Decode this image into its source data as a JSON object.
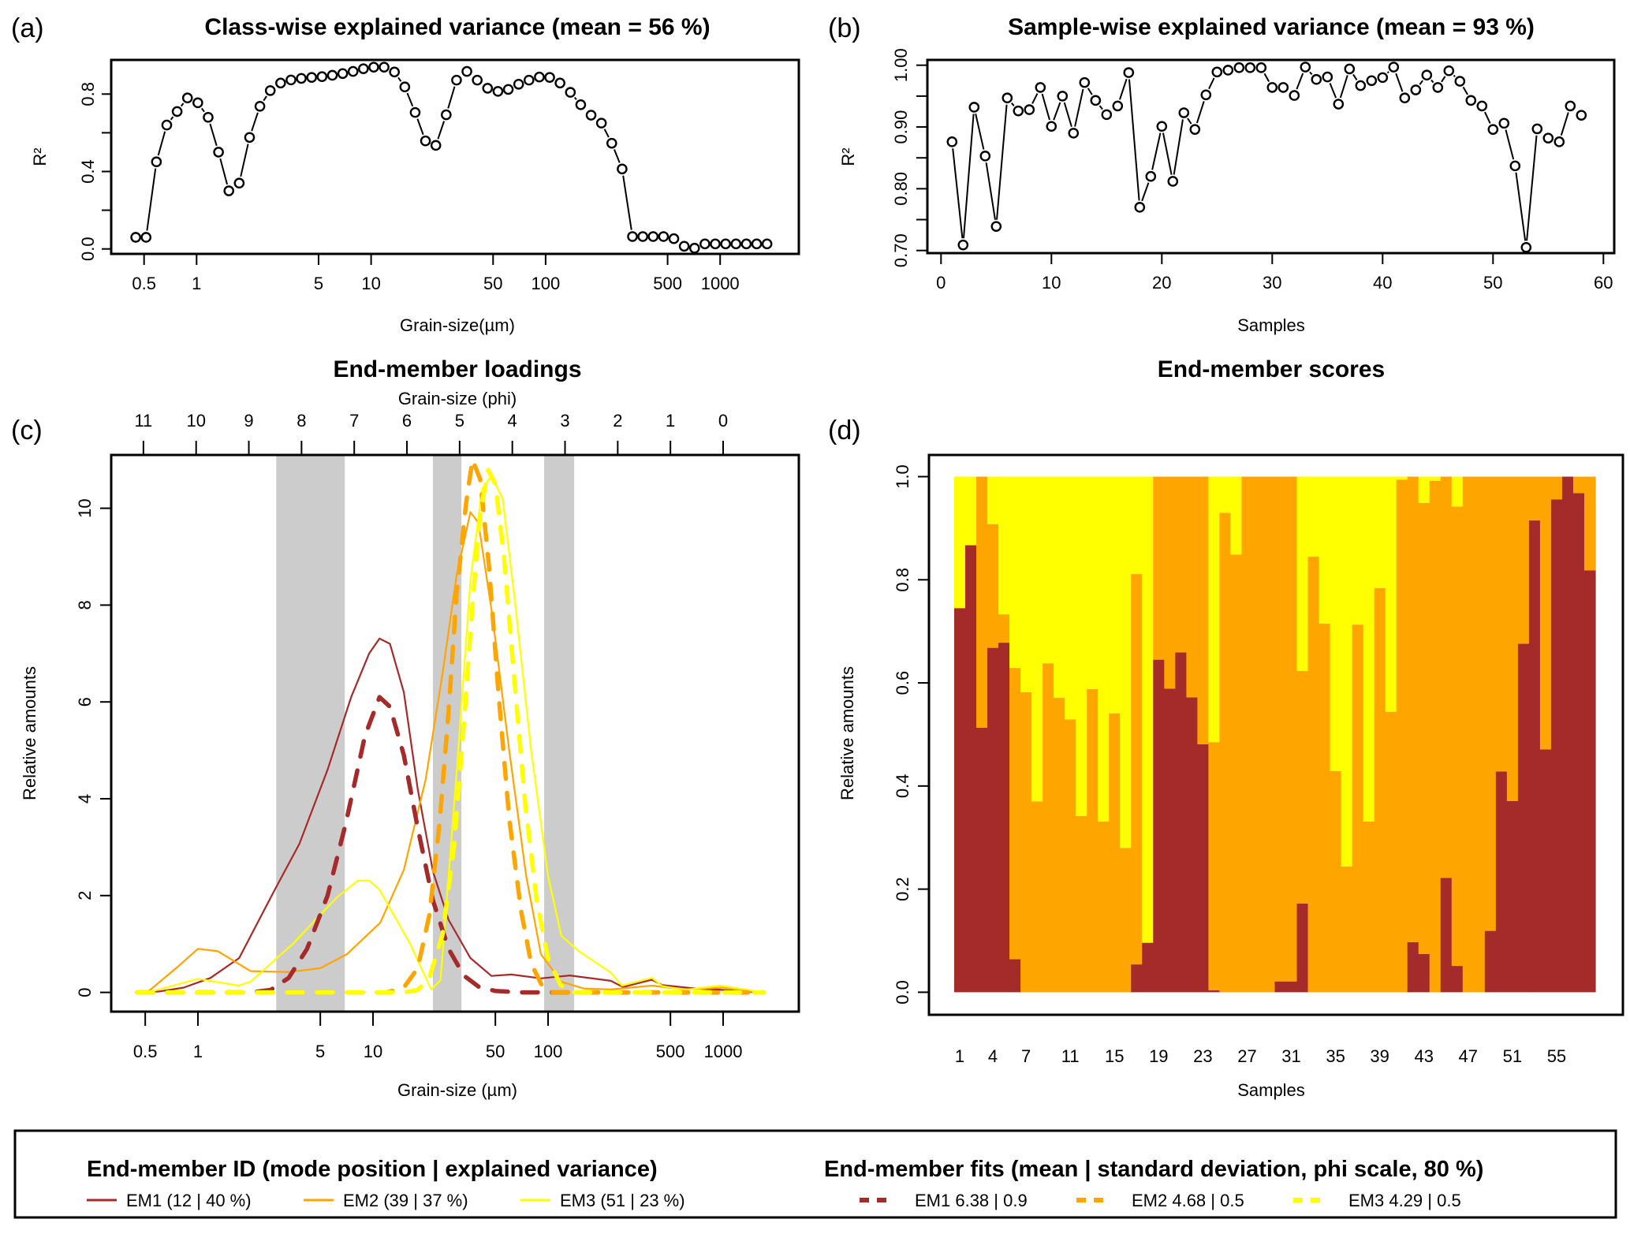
{
  "chart_data": [
    {
      "id": "a",
      "panel_label": "(a)",
      "type": "line",
      "title": "Class-wise explained variance (mean = 56 %)",
      "xlabel": "Grain-size(µm)",
      "ylabel": "R²",
      "xscale": "log",
      "xlim": [
        0.42,
        2100
      ],
      "ylim": [
        -0.02,
        0.96
      ],
      "xticks": [
        0.5,
        1,
        5,
        10,
        50,
        100,
        500,
        1000
      ],
      "xtick_labels": [
        "0.5",
        "1",
        "5",
        "10",
        "50",
        "100",
        "500",
        "1000"
      ],
      "yticks": [
        0.0,
        0.2,
        0.4,
        0.6,
        0.8
      ],
      "ytick_labels": [
        "0.0",
        "",
        "0.4",
        "",
        "0.8"
      ],
      "marker": "open-circle",
      "grid": false,
      "x_first": 0.448,
      "x_log_step": 0.0593,
      "values": [
        0.06,
        0.06,
        0.45,
        0.64,
        0.71,
        0.78,
        0.755,
        0.68,
        0.5,
        0.3,
        0.34,
        0.576,
        0.737,
        0.818,
        0.857,
        0.873,
        0.881,
        0.886,
        0.89,
        0.897,
        0.906,
        0.917,
        0.931,
        0.939,
        0.939,
        0.914,
        0.837,
        0.705,
        0.558,
        0.535,
        0.693,
        0.872,
        0.917,
        0.872,
        0.83,
        0.814,
        0.824,
        0.851,
        0.872,
        0.888,
        0.886,
        0.857,
        0.809,
        0.745,
        0.691,
        0.65,
        0.546,
        0.413,
        0.064,
        0.064,
        0.064,
        0.064,
        0.053,
        0.014,
        0.004,
        0.026,
        0.026,
        0.026,
        0.026,
        0.026,
        0.026,
        0.026
      ]
    },
    {
      "id": "b",
      "panel_label": "(b)",
      "type": "line",
      "title": "Sample-wise explained variance (mean = 93 %)",
      "xlabel": "Samples",
      "ylabel": "R²",
      "xlim": [
        0,
        60
      ],
      "ylim": [
        0.7,
        1.0
      ],
      "xticks": [
        0,
        10,
        20,
        30,
        40,
        50,
        60
      ],
      "xtick_labels": [
        "0",
        "10",
        "20",
        "30",
        "40",
        "50",
        "60"
      ],
      "yticks": [
        0.7,
        0.75,
        0.8,
        0.85,
        0.9,
        0.95,
        1.0
      ],
      "ytick_labels": [
        "0.70",
        "",
        "0.80",
        "",
        "0.90",
        "",
        "1.00"
      ],
      "marker": "open-circle",
      "grid": false,
      "values": [
        0.876,
        0.709,
        0.932,
        0.853,
        0.739,
        0.947,
        0.926,
        0.928,
        0.964,
        0.901,
        0.95,
        0.89,
        0.972,
        0.943,
        0.92,
        0.934,
        0.988,
        0.77,
        0.82,
        0.901,
        0.812,
        0.923,
        0.896,
        0.952,
        0.989,
        0.992,
        0.996,
        0.996,
        0.996,
        0.964,
        0.964,
        0.951,
        0.997,
        0.977,
        0.981,
        0.937,
        0.994,
        0.967,
        0.975,
        0.98,
        0.997,
        0.947,
        0.96,
        0.984,
        0.964,
        0.991,
        0.974,
        0.943,
        0.934,
        0.896,
        0.906,
        0.837,
        0.705,
        0.897,
        0.882,
        0.876,
        0.934,
        0.919
      ]
    },
    {
      "id": "c",
      "panel_label": "(c)",
      "type": "line",
      "title": "End-member loadings",
      "xlabel": "Grain-size (µm)",
      "x2label": "Grain-size (phi)",
      "ylabel": "Relative amounts",
      "xscale": "log",
      "xlim": [
        0.42,
        2100
      ],
      "ylim": [
        -0.3,
        11
      ],
      "xticks": [
        0.5,
        1,
        5,
        10,
        50,
        100,
        500,
        1000
      ],
      "xtick_labels": [
        "0.5",
        "1",
        "5",
        "10",
        "50",
        "100",
        "500",
        "1000"
      ],
      "x2ticks_phi": [
        11,
        10,
        9,
        8,
        7,
        6,
        5,
        4,
        3,
        2,
        1,
        0
      ],
      "yticks": [
        0,
        2,
        4,
        6,
        8,
        10
      ],
      "ytick_labels": [
        "0",
        "2",
        "4",
        "6",
        "8",
        "10"
      ],
      "shaded_bands_um": [
        [
          2.8,
          6.9
        ],
        [
          22,
          32
        ],
        [
          95,
          141
        ]
      ],
      "series": [
        {
          "name": "EM1 (12 | 40 %)",
          "style": "solid",
          "color": "#a52a2a",
          "x": [
            0.45,
            0.6,
            0.83,
            1.18,
            1.72,
            2.7,
            3.8,
            5.5,
            7.5,
            9.5,
            10.9,
            12.5,
            15,
            18,
            22,
            27,
            36,
            47.5,
            61.7,
            91,
            133,
            228,
            268,
            392,
            450,
            700,
            1000,
            1700
          ],
          "y": [
            0,
            0.02,
            0.1,
            0.3,
            0.71,
            2.07,
            3.07,
            4.6,
            6.1,
            7.0,
            7.31,
            7.2,
            6.2,
            4.2,
            2.5,
            1.5,
            0.71,
            0.34,
            0.37,
            0.29,
            0.35,
            0.24,
            0.11,
            0.26,
            0.15,
            0.08,
            0.05,
            0
          ]
        },
        {
          "name": "EM2 (39 | 37 %)",
          "style": "solid",
          "color": "#ffa500",
          "x": [
            0.45,
            0.52,
            0.75,
            1.0,
            1.3,
            2.0,
            3.3,
            5,
            7.1,
            11,
            15,
            20,
            25,
            30,
            36,
            40,
            48,
            60,
            75,
            91,
            119,
            160,
            228,
            392,
            600,
            1000,
            1700
          ],
          "y": [
            0,
            0.02,
            0.5,
            0.9,
            0.85,
            0.44,
            0.42,
            0.5,
            0.79,
            1.44,
            2.53,
            4.4,
            6.6,
            8.6,
            9.92,
            9.7,
            7.8,
            5.0,
            2.4,
            0.79,
            0.22,
            0.08,
            0.06,
            0.14,
            0.06,
            0.1,
            0
          ]
        },
        {
          "name": "EM3 (51 | 23 %)",
          "style": "solid",
          "color": "#ffff00",
          "x": [
            0.45,
            0.52,
            1.0,
            1.7,
            2.0,
            3.5,
            6.2,
            8.2,
            9.5,
            10.9,
            16.3,
            21.5,
            24.3,
            30,
            36,
            42,
            47.5,
            55,
            65,
            80,
            100,
            119,
            150,
            228,
            264,
            392,
            450,
            600,
            960,
            1700
          ],
          "y": [
            0,
            0,
            0.28,
            0.14,
            0.22,
            1.01,
            1.96,
            2.31,
            2.31,
            2.12,
            1.0,
            0.06,
            0.25,
            4.5,
            8.5,
            10.4,
            10.67,
            10.2,
            8.0,
            5.0,
            2.4,
            1.17,
            0.85,
            0.41,
            0.14,
            0.3,
            0.13,
            0.05,
            0.14,
            0
          ]
        },
        {
          "name": "EM1 6.38 | 0.9",
          "style": "dashed",
          "color": "#a52a2a",
          "x": [
            0.45,
            2.0,
            2.6,
            3.3,
            4.2,
            5.5,
            7.0,
            9.0,
            10.9,
            12.5,
            15,
            18,
            22,
            27,
            33,
            40,
            50,
            70,
            100,
            1700
          ],
          "y": [
            0,
            0,
            0.05,
            0.3,
            0.9,
            2.0,
            3.5,
            5.3,
            6.1,
            5.9,
            4.9,
            3.4,
            1.9,
            0.9,
            0.35,
            0.12,
            0.03,
            0,
            0,
            0
          ]
        },
        {
          "name": "EM2 4.68 | 0.5",
          "style": "dashed",
          "color": "#ffa500",
          "x": [
            0.45,
            12,
            15,
            18,
            21,
            24,
            27,
            30,
            34,
            37,
            41,
            46,
            52,
            60,
            70,
            80,
            92,
            105,
            1700
          ],
          "y": [
            0,
            0,
            0.1,
            0.5,
            1.6,
            3.5,
            5.8,
            8.2,
            10.1,
            11.0,
            10.6,
            8.8,
            6.2,
            3.6,
            1.7,
            0.6,
            0.15,
            0,
            0
          ]
        },
        {
          "name": "EM3 4.29 | 0.5",
          "style": "dashed",
          "color": "#ffff00",
          "x": [
            0.45,
            15,
            18,
            21,
            25,
            29,
            33,
            37,
            41,
            45.5,
            50,
            56,
            64,
            74,
            86,
            100,
            118,
            140,
            1700
          ],
          "y": [
            0,
            0,
            0.05,
            0.3,
            1.2,
            3.0,
            5.5,
            8.0,
            9.9,
            10.79,
            10.5,
            9.0,
            6.5,
            3.9,
            1.9,
            0.7,
            0.15,
            0,
            0
          ]
        }
      ]
    },
    {
      "id": "d",
      "panel_label": "(d)",
      "type": "bar",
      "stacked": true,
      "title": "End-member scores",
      "xlabel": "Samples",
      "ylabel": "Relative amounts",
      "ylim": [
        0,
        1
      ],
      "yticks": [
        0.0,
        0.2,
        0.4,
        0.6,
        0.8,
        1.0
      ],
      "ytick_labels": [
        "0.0",
        "0.2",
        "0.4",
        "0.6",
        "0.8",
        "1.0"
      ],
      "xtick_samples": [
        1,
        4,
        7,
        11,
        15,
        19,
        23,
        27,
        31,
        35,
        39,
        43,
        47,
        51,
        55
      ],
      "categories_count": 58,
      "series": [
        {
          "name": "EM1",
          "color": "#a52a2a",
          "values": [
            0.745,
            0.867,
            0.513,
            0.668,
            0.678,
            0.064,
            0,
            0,
            0,
            0,
            0,
            0,
            0,
            0,
            0,
            0,
            0.054,
            0.096,
            0.645,
            0.589,
            0.659,
            0.572,
            0.481,
            0.004,
            0,
            0,
            0,
            0,
            0,
            0.021,
            0.021,
            0.172,
            0,
            0,
            0,
            0,
            0,
            0,
            0,
            0,
            0,
            0.097,
            0.074,
            0,
            0.222,
            0.051,
            0,
            0,
            0.119,
            0.428,
            0.371,
            0.676,
            0.915,
            0.471,
            0.956,
            1.0,
            0.968,
            0.818
          ]
        },
        {
          "name": "EM2",
          "color": "#ffa500",
          "values": [
            0,
            0,
            0.487,
            0.24,
            0.055,
            0.565,
            0.582,
            0.37,
            0.638,
            0.571,
            0.529,
            0.342,
            0.588,
            0.331,
            0.541,
            0.28,
            0.757,
            0,
            0.355,
            0.411,
            0.341,
            0.428,
            0.519,
            0.481,
            0.93,
            0.849,
            1.0,
            1.0,
            1.0,
            0.979,
            0.979,
            0.451,
            0.845,
            0.715,
            0.429,
            0.244,
            0.713,
            0.331,
            0.784,
            0.544,
            0.994,
            0.903,
            0.875,
            0.992,
            0.778,
            0.891,
            1.0,
            1.0,
            0.881,
            0.572,
            0.629,
            0.324,
            0.085,
            0.529,
            0.044,
            0,
            0.032,
            0.182
          ]
        },
        {
          "name": "EM3",
          "color": "#ffff00",
          "values": [
            0.255,
            0.133,
            0,
            0.092,
            0.267,
            0.371,
            0.418,
            0.63,
            0.362,
            0.429,
            0.471,
            0.658,
            0.412,
            0.669,
            0.459,
            0.72,
            0.189,
            0.904,
            0,
            0,
            0,
            0,
            0,
            0.515,
            0.07,
            0.151,
            0,
            0,
            0,
            0,
            0,
            0.377,
            0.155,
            0.285,
            0.571,
            0.756,
            0.287,
            0.669,
            0.216,
            0.456,
            0.006,
            0,
            0.051,
            0.008,
            0,
            0.058,
            0,
            0,
            0,
            0,
            0,
            0,
            0,
            0,
            0,
            0,
            0,
            0
          ]
        }
      ]
    }
  ],
  "legend": {
    "left_heading": "End-member ID (mode position | explained variance)",
    "right_heading": "End-member fits (mean | standard deviation, phi scale, 80 %)",
    "left_items": [
      {
        "label": "EM1 (12 | 40 %)",
        "color": "#a52a2a"
      },
      {
        "label": "EM2 (39 | 37 %)",
        "color": "#ffa500"
      },
      {
        "label": "EM3 (51 | 23 %)",
        "color": "#ffff00"
      }
    ],
    "right_items": [
      {
        "label": "EM1  6.38 | 0.9",
        "color": "#a52a2a"
      },
      {
        "label": "EM2  4.68 | 0.5",
        "color": "#ffa500"
      },
      {
        "label": "EM3  4.29 | 0.5",
        "color": "#ffff00"
      }
    ]
  },
  "colors": {
    "band": "#cccccc",
    "axis": "#000000"
  }
}
